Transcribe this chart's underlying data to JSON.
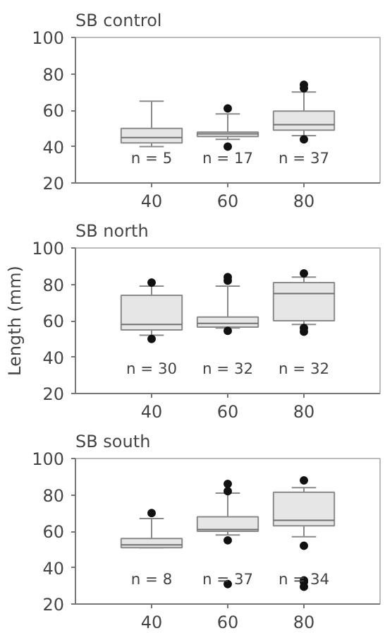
{
  "chart_data": [
    {
      "type": "box",
      "title": "SB control",
      "x": [
        40,
        60,
        80
      ],
      "xlim": [
        20,
        100
      ],
      "xticks": [
        40,
        60,
        80
      ],
      "ylim": [
        20,
        100
      ],
      "yticks": [
        20,
        40,
        60,
        80,
        100
      ],
      "boxes": [
        {
          "low": 40,
          "q1": 42,
          "median": 45,
          "q3": 50,
          "high": 65
        },
        {
          "low": 44,
          "q1": 45.5,
          "median": 47,
          "q3": 48,
          "high": 58,
          "outliers": [
            61,
            40
          ]
        },
        {
          "low": 46,
          "q1": 49,
          "median": 52,
          "q3": 59.5,
          "high": 70,
          "outliers": [
            74,
            72,
            44
          ]
        }
      ],
      "annotations": [
        "n = 5",
        "n = 17",
        "n = 37"
      ]
    },
    {
      "type": "box",
      "title": "SB north",
      "ylabel": "Length (mm)",
      "x": [
        40,
        60,
        80
      ],
      "xlim": [
        20,
        100
      ],
      "xticks": [
        40,
        60,
        80
      ],
      "ylim": [
        20,
        100
      ],
      "yticks": [
        20,
        40,
        60,
        80,
        100
      ],
      "boxes": [
        {
          "low": 52,
          "q1": 55,
          "median": 58,
          "q3": 74,
          "high": 79,
          "outliers": [
            81,
            50
          ]
        },
        {
          "low": 56,
          "q1": 56.5,
          "median": 58.5,
          "q3": 62,
          "high": 79,
          "outliers": [
            84,
            82,
            54.5
          ]
        },
        {
          "low": 58,
          "q1": 60,
          "median": 75,
          "q3": 81,
          "high": 84,
          "outliers": [
            86,
            56,
            54
          ]
        }
      ],
      "annotations": [
        "n = 30",
        "n = 32",
        "n = 32"
      ]
    },
    {
      "type": "box",
      "title": "SB south",
      "x": [
        40,
        60,
        80
      ],
      "xlim": [
        20,
        100
      ],
      "xticks": [
        40,
        60,
        80
      ],
      "ylim": [
        20,
        100
      ],
      "yticks": [
        20,
        40,
        60,
        80,
        100
      ],
      "boxes": [
        {
          "low": 51,
          "q1": 51,
          "median": 52.5,
          "q3": 56,
          "high": 67,
          "outliers": [
            70
          ]
        },
        {
          "low": 58,
          "q1": 60,
          "median": 61,
          "q3": 68,
          "high": 81,
          "outliers": [
            86,
            82,
            55,
            31
          ]
        },
        {
          "low": 57,
          "q1": 63,
          "median": 66,
          "q3": 81.5,
          "high": 84,
          "outliers": [
            88,
            52,
            33,
            32,
            29.5
          ]
        }
      ],
      "annotations": [
        "n = 8",
        "n = 37",
        "n = 34"
      ]
    }
  ]
}
